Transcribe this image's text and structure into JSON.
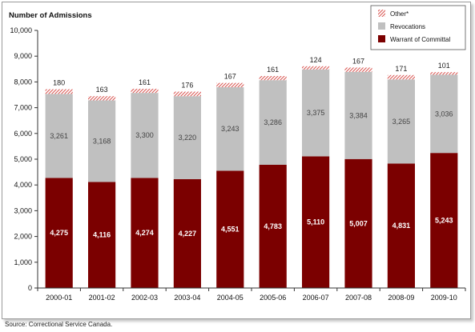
{
  "chart_data": {
    "type": "bar",
    "stacked": true,
    "ylabel": "Number of Admissions",
    "ylim": [
      0,
      10000
    ],
    "yticks": [
      "0",
      "1,000",
      "2,000",
      "3,000",
      "4,000",
      "5,000",
      "6,000",
      "7,000",
      "8,000",
      "9,000",
      "10,000"
    ],
    "categories": [
      "2000-01",
      "2001-02",
      "2002-03",
      "2003-04",
      "2004-05",
      "2005-06",
      "2006-07",
      "2007-08",
      "2008-09",
      "2009-10"
    ],
    "series": [
      {
        "name": "Warrant of Committal",
        "color": "#7b0000",
        "values": [
          4275,
          4116,
          4274,
          4227,
          4551,
          4783,
          5110,
          5007,
          4831,
          5243
        ],
        "labels": [
          "4,275",
          "4,116",
          "4,274",
          "4,227",
          "4,551",
          "4,783",
          "5,110",
          "5,007",
          "4,831",
          "5,243"
        ]
      },
      {
        "name": "Revocations",
        "color": "#c0c0c0",
        "values": [
          3261,
          3168,
          3300,
          3220,
          3243,
          3286,
          3375,
          3384,
          3265,
          3036
        ],
        "labels": [
          "3,261",
          "3,168",
          "3,300",
          "3,220",
          "3,243",
          "3,286",
          "3,375",
          "3,384",
          "3,265",
          "3,036"
        ]
      },
      {
        "name": "Other*",
        "color": "#e8a090",
        "pattern": "diagonal-hatch",
        "values": [
          180,
          163,
          161,
          176,
          167,
          161,
          124,
          167,
          171,
          101
        ],
        "labels": [
          "180",
          "163",
          "161",
          "176",
          "167",
          "161",
          "124",
          "167",
          "171",
          "101"
        ]
      }
    ],
    "legend": {
      "position": "top-right"
    },
    "grid": false
  },
  "source": "Source:  Correctional Service Canada."
}
